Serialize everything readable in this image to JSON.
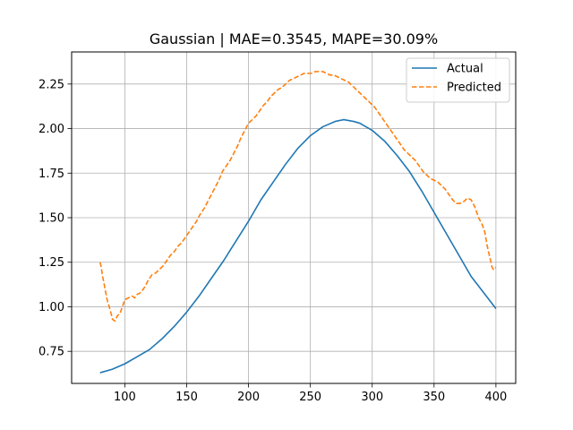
{
  "chart_data": {
    "type": "line",
    "title": "Gaussian | MAE=0.3545, MAPE=30.09%",
    "xlabel": "",
    "ylabel": "",
    "xlim": [
      57,
      416
    ],
    "ylim": [
      0.57,
      2.43
    ],
    "xticks": [
      100,
      150,
      200,
      250,
      300,
      350,
      400
    ],
    "yticks": [
      0.75,
      1.0,
      1.25,
      1.5,
      1.75,
      2.0,
      2.25
    ],
    "xtick_labels": [
      "100",
      "150",
      "200",
      "250",
      "300",
      "350",
      "400"
    ],
    "ytick_labels": [
      "0.75",
      "1.00",
      "1.25",
      "1.50",
      "1.75",
      "2.00",
      "2.25"
    ],
    "grid": true,
    "legend_position": "top-right",
    "series": [
      {
        "name": "Actual",
        "color": "#1f77b4",
        "style": "solid",
        "x": [
          80,
          90,
          100,
          110,
          120,
          130,
          140,
          150,
          160,
          170,
          180,
          190,
          200,
          210,
          220,
          230,
          240,
          250,
          260,
          270,
          277,
          285,
          290,
          300,
          310,
          320,
          330,
          340,
          350,
          360,
          370,
          380,
          390,
          400
        ],
        "y": [
          0.63,
          0.65,
          0.68,
          0.72,
          0.76,
          0.82,
          0.89,
          0.97,
          1.06,
          1.16,
          1.26,
          1.37,
          1.48,
          1.6,
          1.7,
          1.8,
          1.89,
          1.96,
          2.01,
          2.04,
          2.05,
          2.04,
          2.03,
          1.99,
          1.93,
          1.85,
          1.76,
          1.65,
          1.53,
          1.41,
          1.29,
          1.17,
          1.08,
          0.99
        ]
      },
      {
        "name": "Predicted",
        "color": "#ff7f0e",
        "style": "dashed",
        "x": [
          80,
          81,
          82,
          83,
          84,
          86,
          87,
          89,
          90,
          92,
          94,
          96,
          98,
          100,
          103,
          106,
          108,
          110,
          113,
          116,
          119,
          122,
          125,
          128,
          131,
          134,
          137,
          140,
          143,
          146,
          149,
          152,
          155,
          158,
          161,
          164,
          167,
          170,
          173,
          176,
          179,
          182,
          185,
          188,
          191,
          194,
          197,
          200,
          203,
          206,
          209,
          212,
          215,
          218,
          221,
          224,
          227,
          230,
          233,
          236,
          239,
          242,
          245,
          248,
          251,
          254,
          257,
          260,
          263,
          266,
          269,
          272,
          275,
          278,
          281,
          284,
          287,
          290,
          293,
          296,
          299,
          302,
          305,
          308,
          311,
          314,
          317,
          320,
          323,
          326,
          329,
          332,
          335,
          338,
          341,
          344,
          347,
          350,
          353,
          356,
          359,
          362,
          365,
          368,
          371,
          374,
          377,
          380,
          383,
          386,
          389,
          391,
          392,
          393,
          394,
          395,
          396,
          397,
          398,
          399,
          400
        ],
        "y": [
          1.25,
          1.22,
          1.17,
          1.14,
          1.1,
          1.03,
          1.01,
          0.96,
          0.93,
          0.92,
          0.95,
          0.96,
          1.0,
          1.04,
          1.05,
          1.06,
          1.05,
          1.07,
          1.08,
          1.11,
          1.15,
          1.18,
          1.19,
          1.21,
          1.23,
          1.26,
          1.29,
          1.31,
          1.34,
          1.36,
          1.39,
          1.42,
          1.45,
          1.48,
          1.52,
          1.55,
          1.59,
          1.63,
          1.67,
          1.71,
          1.76,
          1.79,
          1.82,
          1.86,
          1.9,
          1.95,
          1.99,
          2.03,
          2.05,
          2.07,
          2.1,
          2.13,
          2.15,
          2.18,
          2.2,
          2.22,
          2.23,
          2.25,
          2.27,
          2.28,
          2.29,
          2.3,
          2.31,
          2.31,
          2.31,
          2.32,
          2.32,
          2.32,
          2.31,
          2.3,
          2.3,
          2.29,
          2.28,
          2.27,
          2.26,
          2.24,
          2.22,
          2.2,
          2.18,
          2.16,
          2.14,
          2.12,
          2.09,
          2.06,
          2.03,
          2.0,
          1.97,
          1.94,
          1.91,
          1.88,
          1.86,
          1.84,
          1.82,
          1.79,
          1.76,
          1.74,
          1.72,
          1.71,
          1.7,
          1.68,
          1.66,
          1.63,
          1.6,
          1.58,
          1.58,
          1.59,
          1.61,
          1.6,
          1.56,
          1.5,
          1.46,
          1.42,
          1.38,
          1.34,
          1.31,
          1.28,
          1.25,
          1.22,
          1.21,
          1.22,
          1.22
        ]
      }
    ]
  }
}
